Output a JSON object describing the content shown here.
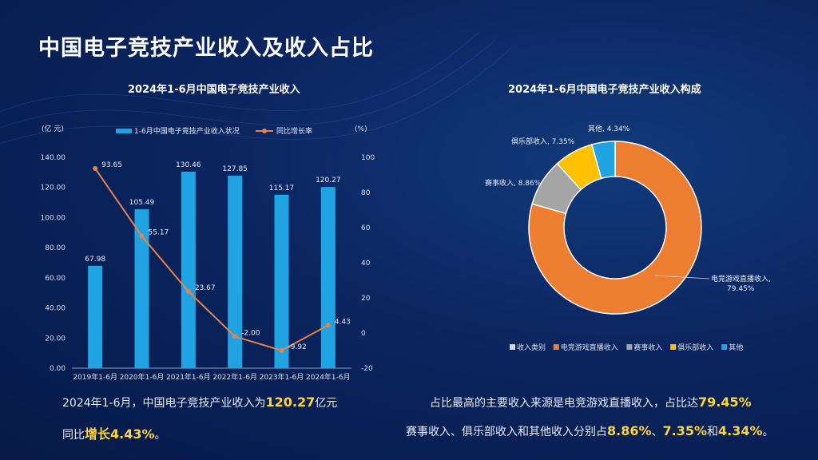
{
  "title": "中国电子竞技产业收入及收入占比",
  "left_subtitle": "2024年1-6月中国电子竞技产业收入",
  "right_subtitle": "2024年1-6月中国电子竞技产业收入构成",
  "left_caption": {
    "p1": "2024年1-6月，中国电子竞技产业收入为",
    "v1": "120.27",
    "p2": "亿元",
    "p3": "同比",
    "v2": "增长4.43%",
    "p4": "。"
  },
  "right_caption": {
    "p1": "占比最高的主要收入来源是电竞游戏直播收入，占比达",
    "v1": "79.45%",
    "p2": "赛事收入、俱乐部收入和其他收入分别占",
    "v2": "8.86%",
    "p3": "、",
    "v3": "7.35%",
    "p4": "和",
    "v4": "4.34%",
    "p5": "。"
  },
  "colors": {
    "bar": "#1fa3e3",
    "line": "#e8834a",
    "pie": [
      "#ed7d31",
      "#a5a5a5",
      "#ffc000",
      "#1fa3e3"
    ]
  },
  "chart_data": [
    {
      "type": "bar",
      "title": "2024年1-6月中国电子竞技产业收入",
      "categories": [
        "2019年1-6月",
        "2020年1-6月",
        "2021年1-6月",
        "2022年1-6月",
        "2023年1-6月",
        "2024年1-6月"
      ],
      "left_axis_label": "(亿 元)",
      "right_axis_label": "(%)",
      "ylim": [
        0,
        140
      ],
      "y2lim": [
        -20,
        100
      ],
      "yticks": [
        "0.00",
        "20.00",
        "40.00",
        "60.00",
        "80.00",
        "100.00",
        "120.00",
        "140.00"
      ],
      "y2ticks": [
        "-20",
        "0",
        "20",
        "40",
        "60",
        "80",
        "100"
      ],
      "series": [
        {
          "name": "1-6月中国电子竞技产业收入状况",
          "type": "bar",
          "values": [
            67.98,
            105.49,
            130.46,
            127.85,
            115.17,
            120.27
          ]
        },
        {
          "name": "同比增长率",
          "type": "line",
          "axis": "right",
          "values": [
            93.65,
            55.17,
            23.67,
            -2.0,
            -9.92,
            4.43
          ],
          "labels": [
            "93.65",
            "55.17",
            "23.67",
            "-2.00",
            "-9.92",
            "4.43"
          ]
        }
      ],
      "legend": "top"
    },
    {
      "type": "pie",
      "title": "2024年1-6月中国电子竞技产业收入构成",
      "slices": [
        {
          "name": "电竞游戏直播收入",
          "value": 79.45,
          "label": "电竞游戏直播收入,\n79.45%"
        },
        {
          "name": "赛事收入",
          "value": 8.86,
          "label": "赛事收入, 8.86%"
        },
        {
          "name": "俱乐部收入",
          "value": 7.35,
          "label": "俱乐部收入, 7.35%"
        },
        {
          "name": "其他",
          "value": 4.34,
          "label": "其他, 4.34%"
        }
      ],
      "legend_title": "收入类别",
      "legend": "bottom"
    }
  ]
}
